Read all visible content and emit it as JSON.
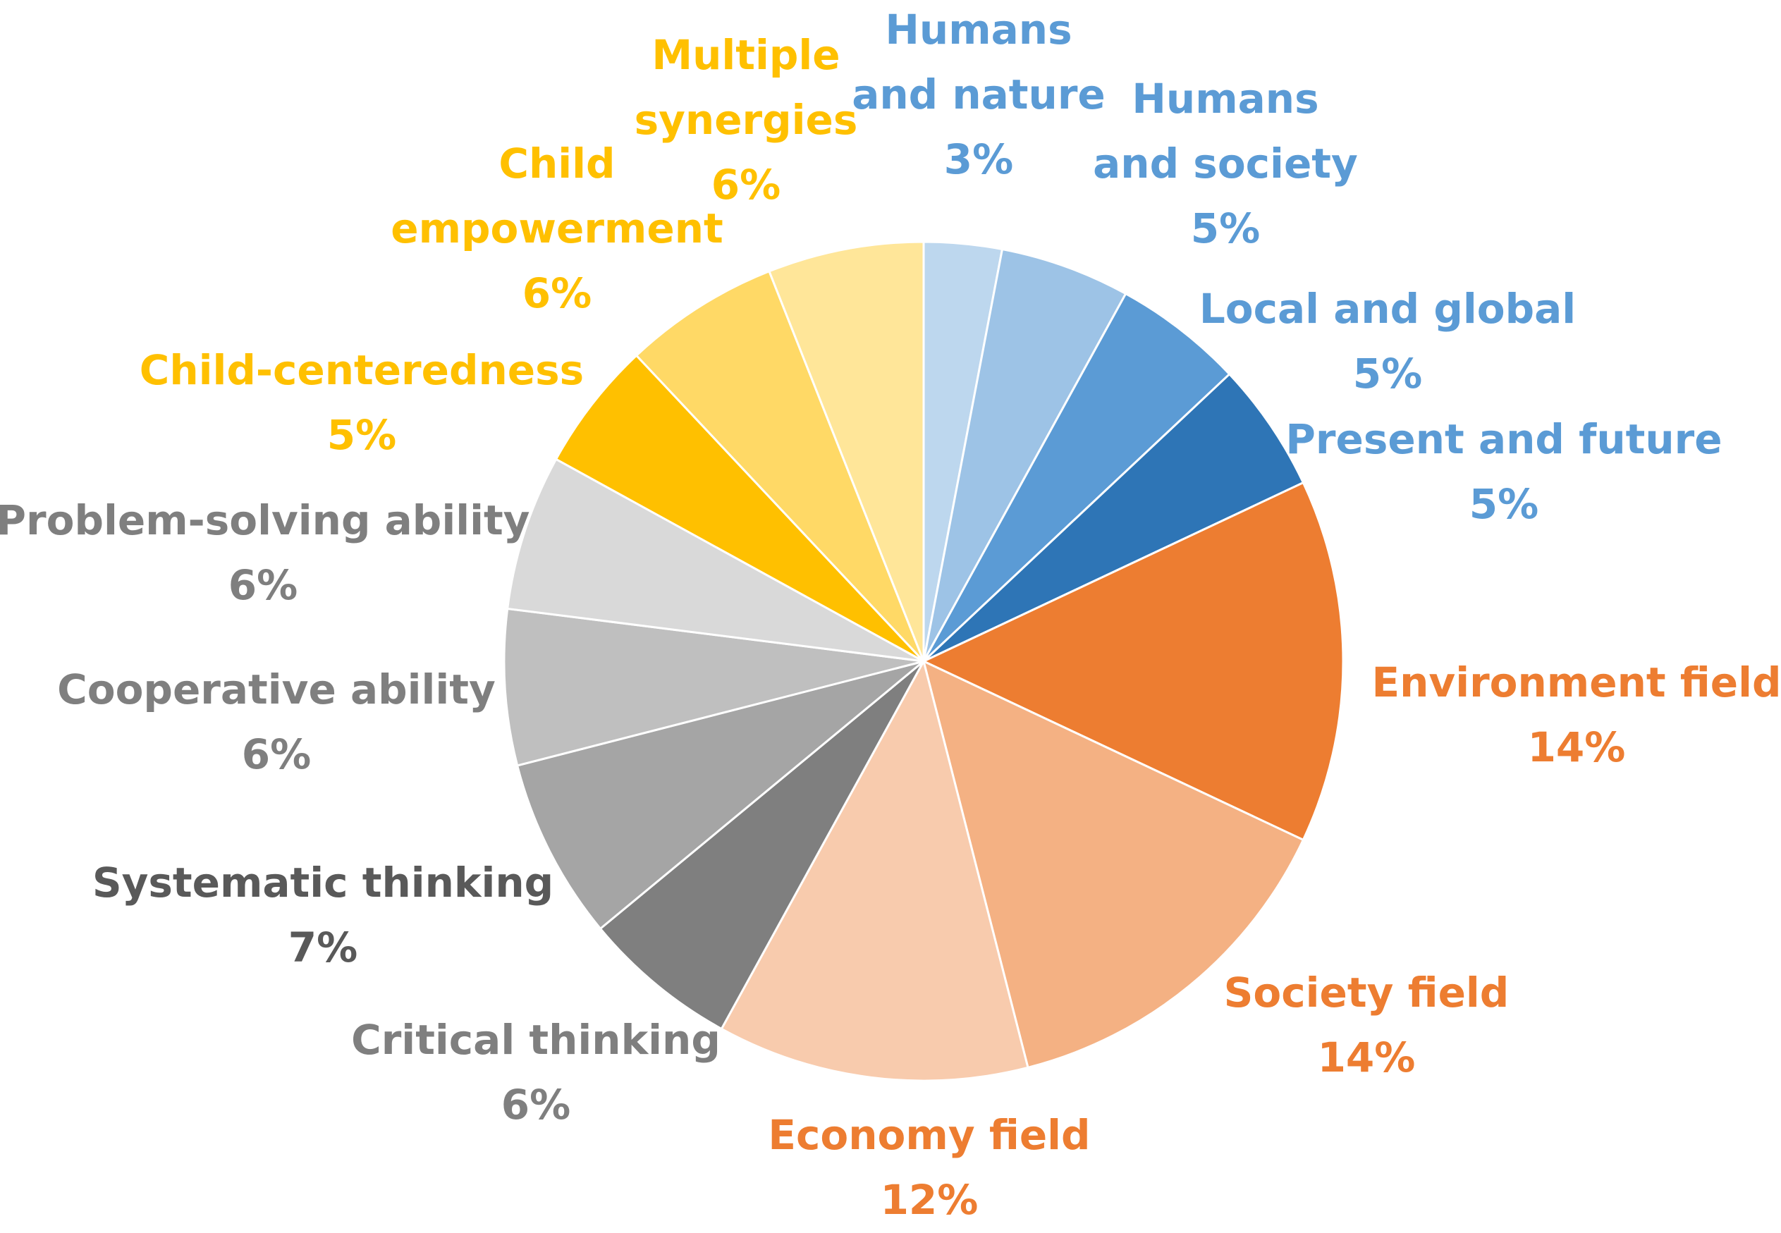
{
  "chart_data": {
    "type": "pie",
    "title": "",
    "start_angle_deg": 0,
    "direction": "clockwise",
    "slices": [
      {
        "name_lines": [
          "Humans",
          "and nature"
        ],
        "label": "Humans and nature",
        "pct_label": "3%",
        "value": 3,
        "color": "#BDD7EE",
        "label_color": "#5B9BD5"
      },
      {
        "name_lines": [
          "Humans",
          "and society"
        ],
        "label": "Humans and society",
        "pct_label": "5%",
        "value": 5,
        "color": "#9DC3E6",
        "label_color": "#5B9BD5"
      },
      {
        "name_lines": [
          "Local and global"
        ],
        "label": "Local and global",
        "pct_label": "5%",
        "value": 5,
        "color": "#5B9BD5",
        "label_color": "#5B9BD5"
      },
      {
        "name_lines": [
          "Present and future"
        ],
        "label": "Present and future",
        "pct_label": "5%",
        "value": 5,
        "color": "#2E75B6",
        "label_color": "#5B9BD5"
      },
      {
        "name_lines": [
          "Environment field"
        ],
        "label": "Environment field",
        "pct_label": "14%",
        "value": 14,
        "color": "#ED7D31",
        "label_color": "#ED7D31"
      },
      {
        "name_lines": [
          "Society field"
        ],
        "label": "Society field",
        "pct_label": "14%",
        "value": 14,
        "color": "#F4B183",
        "label_color": "#ED7D31"
      },
      {
        "name_lines": [
          "Economy field"
        ],
        "label": "Economy field",
        "pct_label": "12%",
        "value": 12,
        "color": "#F8CBAD",
        "label_color": "#ED7D31"
      },
      {
        "name_lines": [
          "Critical thinking"
        ],
        "label": "Critical thinking",
        "pct_label": "6%",
        "value": 6,
        "color": "#7F7F7F",
        "label_color": "#7F7F7F"
      },
      {
        "name_lines": [
          "Systematic thinking"
        ],
        "label": "Systematic thinking",
        "pct_label": "7%",
        "value": 7,
        "color": "#A5A5A5",
        "label_color": "#595959"
      },
      {
        "name_lines": [
          "Cooperative ability"
        ],
        "label": "Cooperative ability",
        "pct_label": "6%",
        "value": 6,
        "color": "#BFBFBF",
        "label_color": "#7F7F7F"
      },
      {
        "name_lines": [
          "Problem-solving ability"
        ],
        "label": "Problem-solving ability",
        "pct_label": "6%",
        "value": 6,
        "color": "#D9D9D9",
        "label_color": "#7F7F7F"
      },
      {
        "name_lines": [
          "Child-centeredness"
        ],
        "label": "Child-centeredness",
        "pct_label": "5%",
        "value": 5,
        "color": "#FFC000",
        "label_color": "#FFC000"
      },
      {
        "name_lines": [
          "Child",
          "empowerment"
        ],
        "label": "Child empowerment",
        "pct_label": "6%",
        "value": 6,
        "color": "#FFD966",
        "label_color": "#FFC000"
      },
      {
        "name_lines": [
          "Multiple",
          "synergies"
        ],
        "label": "Multiple synergies",
        "pct_label": "6%",
        "value": 6,
        "color": "#FFE699",
        "label_color": "#FFC000"
      }
    ]
  }
}
